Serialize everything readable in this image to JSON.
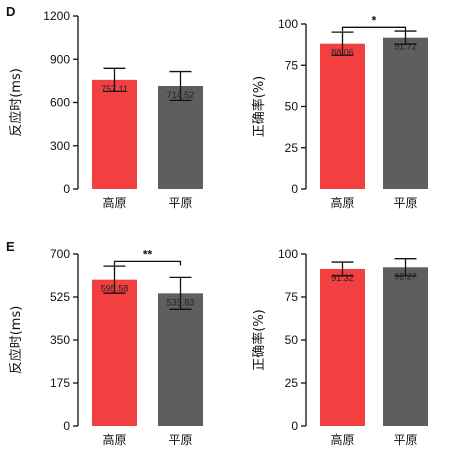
{
  "figure": {
    "panel_letters": [
      "D",
      "E"
    ]
  },
  "chart_data": [
    {
      "panel": "D",
      "type": "bar",
      "ylabel": "反应时(ms)",
      "ylim": [
        0,
        1200
      ],
      "yticks": [
        0,
        300,
        600,
        900,
        1200
      ],
      "categories": [
        "高原",
        "平原"
      ],
      "values": [
        757.11,
        714.52
      ],
      "value_labels": [
        "757.11",
        "714.52"
      ],
      "errors": [
        80,
        100
      ],
      "colors": [
        "#f24040",
        "#5e5e5e"
      ],
      "significance": null
    },
    {
      "panel": "",
      "type": "bar",
      "ylabel": "正确率(%)",
      "ylim": [
        0,
        100
      ],
      "yticks": [
        0,
        25,
        50,
        75,
        100
      ],
      "categories": [
        "高原",
        "平原"
      ],
      "values": [
        88.06,
        91.72
      ],
      "value_labels": [
        "88.06",
        "91.72"
      ],
      "errors": [
        7,
        4
      ],
      "colors": [
        "#f24040",
        "#5e5e5e"
      ],
      "significance": {
        "label": "*",
        "between": [
          0,
          1
        ],
        "y": 98
      }
    },
    {
      "panel": "E",
      "type": "bar",
      "ylabel": "反应时(ms)",
      "ylim": [
        0,
        700
      ],
      "yticks": [
        0,
        175,
        350,
        525,
        700
      ],
      "categories": [
        "高原",
        "平原"
      ],
      "values": [
        595.58,
        539.83
      ],
      "value_labels": [
        "595.58",
        "539.83"
      ],
      "errors": [
        55,
        65
      ],
      "colors": [
        "#f24040",
        "#5e5e5e"
      ],
      "significance": {
        "label": "**",
        "between": [
          0,
          1
        ],
        "y": 670
      }
    },
    {
      "panel": "",
      "type": "bar",
      "ylabel": "正确率(%)",
      "ylim": [
        0,
        100
      ],
      "yticks": [
        0,
        25,
        50,
        75,
        100
      ],
      "categories": [
        "高原",
        "平原"
      ],
      "values": [
        91.32,
        92.27
      ],
      "value_labels": [
        "91.32",
        "92.27"
      ],
      "errors": [
        4,
        5
      ],
      "colors": [
        "#f24040",
        "#5e5e5e"
      ],
      "significance": null
    }
  ]
}
